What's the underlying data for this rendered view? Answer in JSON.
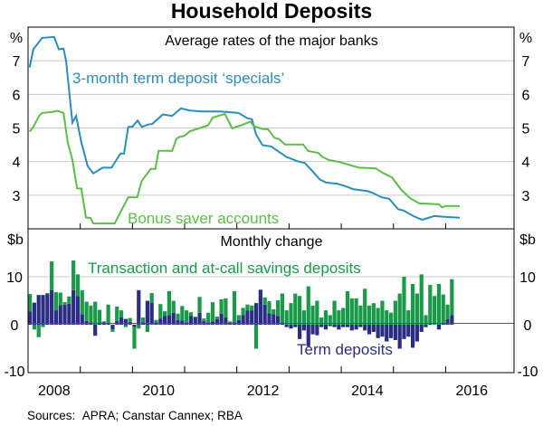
{
  "chart_data": [
    {
      "type": "line",
      "title": "Household Deposits",
      "panel_title": "Average rates of the major banks",
      "ylabel": "%",
      "ylim": [
        2,
        8
      ],
      "yticks": [
        "7",
        "6",
        "5",
        "4",
        "3"
      ],
      "ytick_values": [
        7,
        6,
        5,
        4,
        3
      ],
      "xlim": [
        2008,
        2017.31
      ],
      "grid": true,
      "series": [
        {
          "name": "3-month term deposit ‘specials’",
          "color": "#2a8dba",
          "points": [
            [
              2008.03,
              6.8
            ],
            [
              2008.1,
              7.34
            ],
            [
              2008.27,
              7.68
            ],
            [
              2008.5,
              7.71
            ],
            [
              2008.59,
              7.34
            ],
            [
              2008.68,
              7.36
            ],
            [
              2008.73,
              6.98
            ],
            [
              2008.85,
              5.16
            ],
            [
              2008.92,
              5.36
            ],
            [
              2009.02,
              4.58
            ],
            [
              2009.14,
              3.87
            ],
            [
              2009.25,
              3.65
            ],
            [
              2009.43,
              3.82
            ],
            [
              2009.6,
              3.82
            ],
            [
              2009.77,
              4.24
            ],
            [
              2009.84,
              4.24
            ],
            [
              2009.92,
              5.03
            ],
            [
              2010.0,
              5.04
            ],
            [
              2010.1,
              5.22
            ],
            [
              2010.18,
              5.03
            ],
            [
              2010.29,
              5.1
            ],
            [
              2010.38,
              5.12
            ],
            [
              2010.58,
              5.4
            ],
            [
              2010.76,
              5.36
            ],
            [
              2010.93,
              5.58
            ],
            [
              2011.1,
              5.52
            ],
            [
              2011.33,
              5.49
            ],
            [
              2011.68,
              5.49
            ],
            [
              2012.03,
              5.45
            ],
            [
              2012.2,
              5.29
            ],
            [
              2012.29,
              5.26
            ],
            [
              2012.37,
              4.8
            ],
            [
              2012.49,
              4.49
            ],
            [
              2012.66,
              4.45
            ],
            [
              2012.78,
              4.32
            ],
            [
              2012.95,
              4.14
            ],
            [
              2013.18,
              4.0
            ],
            [
              2013.3,
              3.96
            ],
            [
              2013.41,
              3.78
            ],
            [
              2013.59,
              3.47
            ],
            [
              2013.7,
              3.38
            ],
            [
              2013.93,
              3.34
            ],
            [
              2014.11,
              3.25
            ],
            [
              2014.22,
              3.18
            ],
            [
              2014.51,
              3.12
            ],
            [
              2014.63,
              3.05
            ],
            [
              2014.77,
              2.94
            ],
            [
              2014.92,
              2.89
            ],
            [
              2015.09,
              2.58
            ],
            [
              2015.2,
              2.54
            ],
            [
              2015.38,
              2.38
            ],
            [
              2015.55,
              2.27
            ],
            [
              2015.78,
              2.38
            ],
            [
              2015.95,
              2.36
            ],
            [
              2016.27,
              2.33
            ]
          ]
        },
        {
          "name": "Bonus saver accounts",
          "color": "#5cbd48",
          "points": [
            [
              2008.03,
              4.89
            ],
            [
              2008.1,
              5.03
            ],
            [
              2008.21,
              5.36
            ],
            [
              2008.27,
              5.45
            ],
            [
              2008.44,
              5.47
            ],
            [
              2008.56,
              5.51
            ],
            [
              2008.68,
              5.45
            ],
            [
              2008.76,
              4.58
            ],
            [
              2008.85,
              4.05
            ],
            [
              2008.94,
              3.2
            ],
            [
              2009.02,
              3.2
            ],
            [
              2009.11,
              2.34
            ],
            [
              2009.2,
              2.32
            ],
            [
              2009.25,
              2.16
            ],
            [
              2009.66,
              2.16
            ],
            [
              2009.92,
              2.94
            ],
            [
              2010.09,
              2.94
            ],
            [
              2010.18,
              3.43
            ],
            [
              2010.35,
              3.78
            ],
            [
              2010.44,
              3.78
            ],
            [
              2010.5,
              4.32
            ],
            [
              2010.76,
              4.32
            ],
            [
              2010.84,
              4.67
            ],
            [
              2010.9,
              4.74
            ],
            [
              2010.99,
              4.76
            ],
            [
              2011.1,
              4.9
            ],
            [
              2011.45,
              5.08
            ],
            [
              2011.54,
              5.31
            ],
            [
              2011.77,
              5.42
            ],
            [
              2011.91,
              4.99
            ],
            [
              2012.08,
              5.08
            ],
            [
              2012.26,
              5.19
            ],
            [
              2012.32,
              5.06
            ],
            [
              2012.49,
              4.97
            ],
            [
              2012.6,
              4.96
            ],
            [
              2012.72,
              4.71
            ],
            [
              2012.81,
              4.67
            ],
            [
              2012.92,
              4.51
            ],
            [
              2013.27,
              4.51
            ],
            [
              2013.36,
              4.32
            ],
            [
              2013.56,
              4.26
            ],
            [
              2013.64,
              4.14
            ],
            [
              2013.76,
              4.05
            ],
            [
              2013.99,
              3.98
            ],
            [
              2014.11,
              3.92
            ],
            [
              2014.34,
              3.82
            ],
            [
              2014.66,
              3.8
            ],
            [
              2014.8,
              3.66
            ],
            [
              2014.97,
              3.53
            ],
            [
              2015.15,
              3.16
            ],
            [
              2015.32,
              2.91
            ],
            [
              2015.49,
              2.76
            ],
            [
              2015.87,
              2.73
            ],
            [
              2015.93,
              2.64
            ],
            [
              2016.01,
              2.68
            ],
            [
              2016.27,
              2.68
            ]
          ]
        }
      ]
    },
    {
      "type": "bar",
      "panel_title": "Monthly change",
      "ylabel": "$b",
      "ylim": [
        -10,
        20
      ],
      "yticks": [
        "10",
        "0",
        "-10"
      ],
      "ytick_values": [
        10,
        0,
        -10
      ],
      "xlim": [
        2008,
        2017.31
      ],
      "start": 2008,
      "stacked": true,
      "xticks": [
        "2008",
        "2010",
        "2012",
        "2014",
        "2016"
      ],
      "xtick_values": [
        2008.5,
        2010.5,
        2012.5,
        2014.5,
        2016.5
      ],
      "series": [
        {
          "name": "Term deposits",
          "color": "#2b2d83",
          "values": [
            2.8,
            4.6,
            6.2,
            6.2,
            6.4,
            7.2,
            3.0,
            4.1,
            4.2,
            4.4,
            7.2,
            6.0,
            2.2,
            0.8,
            0.5,
            -2.3,
            0.3,
            0.5,
            0.2,
            -1.0,
            0.8,
            1.5,
            1.2,
            0.6,
            -0.5,
            7.2,
            0.5,
            5.0,
            4.6,
            0.5,
            1.3,
            1.8,
            2.0,
            2.5,
            1.0,
            0.9,
            0.5,
            1.8,
            1.5,
            2.5,
            0.8,
            0.5,
            0.7,
            1.2,
            2.3,
            1.5,
            0.2,
            0.5,
            1.0,
            2.0,
            3.0,
            3.0,
            4.5,
            7.3,
            4.2,
            2.4,
            2.2,
            1.8,
            0.5,
            -0.5,
            -0.8,
            -0.5,
            -3.0,
            -1.2,
            -4.5,
            -2.0,
            -2.2,
            -0.5,
            -1.0,
            -0.3,
            -0.5,
            -1.0,
            -0.5,
            -0.5,
            -1.2,
            -1.0,
            -0.5,
            -1.2,
            -2.0,
            -1.5,
            -2.8,
            -2.5,
            -3.5,
            -2.8,
            -3.2,
            -5.0,
            -3.0,
            -2.5,
            -4.8,
            -3.5,
            -1.5,
            -0.5,
            0.3,
            0.0,
            -1.0,
            0.3,
            1.2,
            2.0
          ]
        },
        {
          "name": "Transaction and at-call savings deposits",
          "color": "#1a9a48",
          "values": [
            3.6,
            -1.0,
            -2.6,
            -0.5,
            0.2,
            6.0,
            3.8,
            2.6,
            0.5,
            1.5,
            6.2,
            4.5,
            5.0,
            4.0,
            3.5,
            4.8,
            2.8,
            0.2,
            4.0,
            -0.5,
            3.0,
            1.5,
            -0.5,
            0.8,
            -4.5,
            -0.8,
            1.0,
            -1.5,
            2.0,
            0.5,
            3.0,
            1.0,
            5.0,
            2.5,
            1.3,
            3.0,
            2.5,
            0.8,
            0.2,
            3.3,
            0.5,
            2.0,
            4.0,
            0.5,
            3.0,
            4.0,
            0.5,
            6.5,
            1.0,
            1.5,
            1.2,
            1.0,
            -5.0,
            0.0,
            1.5,
            2.5,
            1.0,
            3.3,
            6.0,
            3.0,
            4.5,
            6.5,
            6.0,
            3.0,
            8.0,
            4.0,
            5.0,
            1.5,
            3.0,
            2.0,
            5.0,
            3.0,
            3.5,
            7.0,
            5.5,
            5.5,
            4.0,
            7.5,
            4.0,
            4.5,
            3.5,
            5.0,
            3.0,
            2.5,
            5.0,
            6.5,
            10.0,
            3.0,
            8.5,
            6.5,
            10.5,
            2.0,
            8.0,
            6.0,
            8.5,
            6.0,
            3.0,
            7.5
          ]
        }
      ]
    }
  ],
  "source": "Sources:  APRA; Canstar Cannex; RBA"
}
